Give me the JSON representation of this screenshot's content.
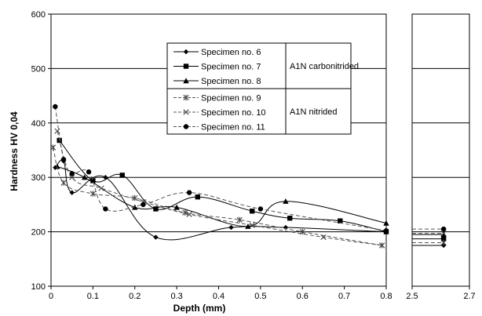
{
  "chart_data": {
    "type": "line",
    "ylabel": "Hardness HV 0,04",
    "xlabel": "Depth (mm)",
    "ylim": [
      100,
      600
    ],
    "yticks": [
      "100",
      "200",
      "300",
      "400",
      "500",
      "600"
    ],
    "xlim_main": [
      0,
      0.8
    ],
    "xticks_main": [
      "0",
      "0.1",
      "0.2",
      "0.3",
      "0.4",
      "0.5",
      "0.6",
      "0.7",
      "0.8"
    ],
    "xlim_inset": [
      2.5,
      2.7
    ],
    "xticks_inset": [
      "2.5",
      "2.7"
    ],
    "grid": "horizontal",
    "legend_position": "top-center",
    "groups": [
      {
        "label": "A1N carbonitrided",
        "series_indexes": [
          0,
          1,
          2
        ]
      },
      {
        "label": "A1N nitrided",
        "series_indexes": [
          3,
          4,
          5
        ]
      }
    ],
    "series": [
      {
        "name": "Specimen no. 6",
        "marker": "diamond",
        "dash": "solid",
        "x": [
          0.01,
          0.03,
          0.05,
          0.13,
          0.25,
          0.43,
          0.56,
          0.8
        ],
        "y": [
          318,
          330,
          272,
          300,
          190,
          208,
          208,
          200
        ],
        "inset": {
          "x": [
            2.61
          ],
          "y": [
            175
          ]
        }
      },
      {
        "name": "Specimen no. 7",
        "marker": "square",
        "dash": "solid",
        "x": [
          0.02,
          0.1,
          0.17,
          0.25,
          0.35,
          0.48,
          0.57,
          0.69,
          0.8
        ],
        "y": [
          368,
          294,
          304,
          242,
          264,
          238,
          225,
          220,
          200
        ],
        "inset": {
          "x": [
            2.61
          ],
          "y": [
            187
          ]
        }
      },
      {
        "name": "Specimen no. 8",
        "marker": "triangle",
        "dash": "solid",
        "x": [
          0.015,
          0.08,
          0.2,
          0.3,
          0.47,
          0.56,
          0.8
        ],
        "y": [
          320,
          300,
          245,
          245,
          210,
          256,
          216
        ],
        "inset": {
          "x": [
            2.61
          ],
          "y": [
            195
          ]
        }
      },
      {
        "name": "Specimen no. 9",
        "marker": "asterisk",
        "dash": "dashed",
        "x": [
          0.005,
          0.03,
          0.1,
          0.2,
          0.32,
          0.45,
          0.6,
          0.79
        ],
        "y": [
          355,
          290,
          270,
          262,
          235,
          222,
          200,
          175
        ],
        "inset": {
          "x": [
            2.61
          ],
          "y": [
            180
          ]
        }
      },
      {
        "name": "Specimen no. 10",
        "marker": "x",
        "dash": "dashed",
        "x": [
          0.015,
          0.05,
          0.12,
          0.22,
          0.33,
          0.48,
          0.65,
          0.79
        ],
        "y": [
          385,
          300,
          280,
          255,
          232,
          212,
          190,
          175
        ],
        "inset": {
          "x": [
            2.61
          ],
          "y": [
            197
          ]
        }
      },
      {
        "name": "Specimen no. 11",
        "marker": "circle",
        "dash": "dashed",
        "x": [
          0.01,
          0.03,
          0.05,
          0.09,
          0.13,
          0.22,
          0.33,
          0.5,
          0.8
        ],
        "y": [
          430,
          333,
          307,
          310,
          242,
          250,
          272,
          242,
          202
        ],
        "inset": {
          "x": [
            2.61
          ],
          "y": [
            205
          ]
        }
      }
    ]
  }
}
